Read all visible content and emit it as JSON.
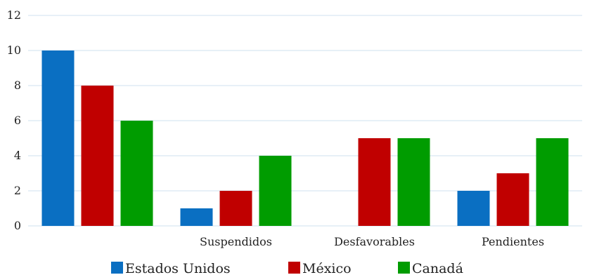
{
  "chart_data": {
    "type": "bar",
    "categories": [
      "",
      "Suspendidos",
      "Desfavorables",
      "Pendientes"
    ],
    "series": [
      {
        "name": "Estados Unidos",
        "values": [
          10,
          1,
          0,
          2
        ],
        "color": "#0a6fc2"
      },
      {
        "name": "México",
        "values": [
          8,
          2,
          5,
          3
        ],
        "color": "#c00000"
      },
      {
        "name": "Canadá",
        "values": [
          6,
          4,
          5,
          5
        ],
        "color": "#009c00"
      }
    ],
    "title": "",
    "xlabel": "",
    "ylabel": "",
    "ylim": [
      0,
      12
    ],
    "yticks": [
      "0",
      "2",
      "4",
      "6",
      "8",
      "10",
      "12"
    ],
    "grid": true,
    "legend_position": "bottom"
  }
}
